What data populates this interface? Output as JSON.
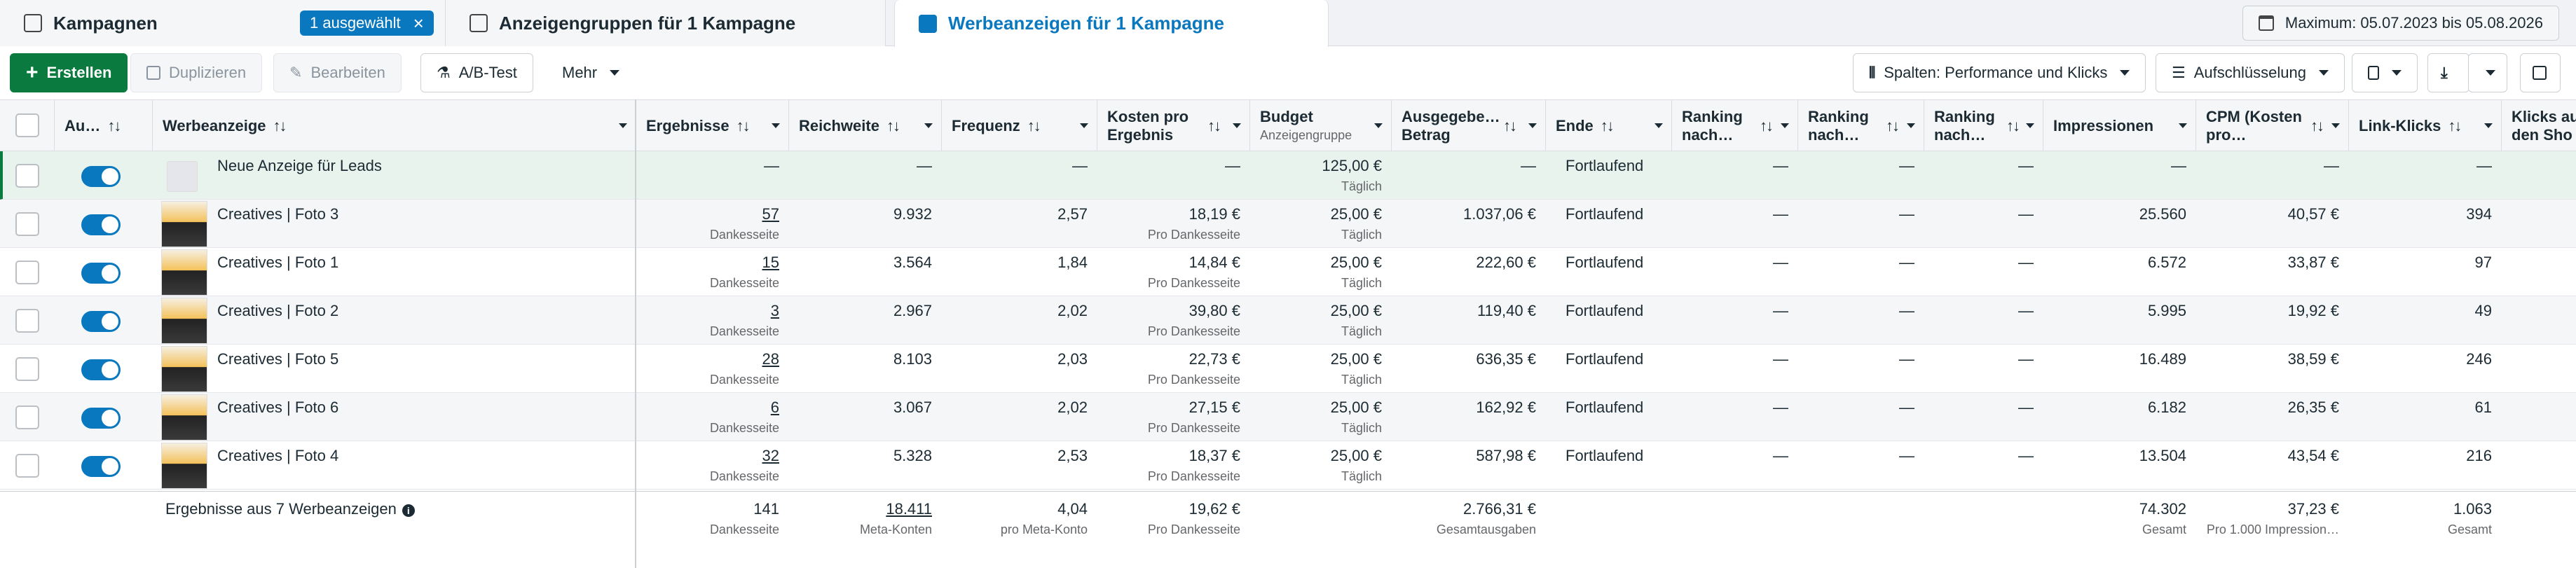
{
  "tabs": {
    "campaigns": "Kampagnen",
    "selected_badge": "1 ausgewählt",
    "adsets": "Anzeigengruppen für 1 Kampagne",
    "ads": "Werbeanzeigen für 1 Kampagne"
  },
  "date_range": "Maximum: 05.07.2023 bis 05.08.2026",
  "toolbar": {
    "create": "Erstellen",
    "duplicate": "Duplizieren",
    "edit": "Bearbeiten",
    "ab_test": "A/B-Test",
    "more": "Mehr",
    "columns": "Spalten: Performance und Klicks",
    "breakdown": "Aufschlüsselung"
  },
  "headers": {
    "status": "Au…",
    "ad": "Werbeanzeige",
    "results": "Ergebnisse",
    "reach": "Reichweite",
    "frequency": "Frequenz",
    "cpr_1": "Kosten pro",
    "cpr_2": "Ergebnis",
    "budget": "Budget",
    "budget_sub": "Anzeigengruppe",
    "spent_1": "Ausgegebe…",
    "spent_2": "Betrag",
    "ends": "Ende",
    "rank1_1": "Ranking",
    "rank1_2": "nach…",
    "rank2_1": "Ranking",
    "rank2_2": "nach…",
    "rank3_1": "Ranking",
    "rank3_2": "nach…",
    "impressions": "Impressionen",
    "cpm_1": "CPM (Kosten",
    "cpm_2": "pro…",
    "link_clicks": "Link-Klicks",
    "clicks_shop_1": "Klicks au",
    "clicks_shop_2": "den Sho"
  },
  "new_row": {
    "name": "Neue Anzeige für Leads",
    "dash": "—",
    "budget": "125,00 €",
    "budget_sub": "Täglich",
    "ends": "Fortlaufend"
  },
  "rows": [
    {
      "name": "Creatives | Foto 3",
      "results": "57",
      "results_sub": "Dankesseite",
      "reach": "9.932",
      "frequency": "2,57",
      "cpr": "18,19 €",
      "cpr_sub": "Pro Dankesseite",
      "budget": "25,00 €",
      "budget_sub": "Täglich",
      "spent": "1.037,06 €",
      "ends": "Fortlaufend",
      "dash": "—",
      "impressions": "25.560",
      "cpm": "40,57 €",
      "link_clicks": "394"
    },
    {
      "name": "Creatives | Foto 1",
      "results": "15",
      "results_sub": "Dankesseite",
      "reach": "3.564",
      "frequency": "1,84",
      "cpr": "14,84 €",
      "cpr_sub": "Pro Dankesseite",
      "budget": "25,00 €",
      "budget_sub": "Täglich",
      "spent": "222,60 €",
      "ends": "Fortlaufend",
      "dash": "—",
      "impressions": "6.572",
      "cpm": "33,87 €",
      "link_clicks": "97"
    },
    {
      "name": "Creatives | Foto 2",
      "results": "3",
      "results_sub": "Dankesseite",
      "reach": "2.967",
      "frequency": "2,02",
      "cpr": "39,80 €",
      "cpr_sub": "Pro Dankesseite",
      "budget": "25,00 €",
      "budget_sub": "Täglich",
      "spent": "119,40 €",
      "ends": "Fortlaufend",
      "dash": "—",
      "impressions": "5.995",
      "cpm": "19,92 €",
      "link_clicks": "49"
    },
    {
      "name": "Creatives | Foto 5",
      "results": "28",
      "results_sub": "Dankesseite",
      "reach": "8.103",
      "frequency": "2,03",
      "cpr": "22,73 €",
      "cpr_sub": "Pro Dankesseite",
      "budget": "25,00 €",
      "budget_sub": "Täglich",
      "spent": "636,35 €",
      "ends": "Fortlaufend",
      "dash": "—",
      "impressions": "16.489",
      "cpm": "38,59 €",
      "link_clicks": "246"
    },
    {
      "name": "Creatives | Foto 6",
      "results": "6",
      "results_sub": "Dankesseite",
      "reach": "3.067",
      "frequency": "2,02",
      "cpr": "27,15 €",
      "cpr_sub": "Pro Dankesseite",
      "budget": "25,00 €",
      "budget_sub": "Täglich",
      "spent": "162,92 €",
      "ends": "Fortlaufend",
      "dash": "—",
      "impressions": "6.182",
      "cpm": "26,35 €",
      "link_clicks": "61"
    },
    {
      "name": "Creatives | Foto 4",
      "results": "32",
      "results_sub": "Dankesseite",
      "reach": "5.328",
      "frequency": "2,53",
      "cpr": "18,37 €",
      "cpr_sub": "Pro Dankesseite",
      "budget": "25,00 €",
      "budget_sub": "Täglich",
      "spent": "587,98 €",
      "ends": "Fortlaufend",
      "dash": "—",
      "impressions": "13.504",
      "cpm": "43,54 €",
      "link_clicks": "216"
    }
  ],
  "summary": {
    "label": "Ergebnisse aus 7 Werbeanzeigen",
    "results": "141",
    "results_sub": "Dankesseite",
    "reach": "18.411",
    "reach_sub": "Meta-Konten",
    "frequency": "4,04",
    "frequency_sub": "pro Meta-Konto",
    "cpr": "19,62 €",
    "cpr_sub": "Pro Dankesseite",
    "spent": "2.766,31 €",
    "spent_sub": "Gesamtausgaben",
    "impressions": "74.302",
    "impressions_sub": "Gesamt",
    "cpm": "37,23 €",
    "cpm_sub": "Pro 1.000 Impression…",
    "link_clicks": "1.063",
    "link_clicks_sub": "Gesamt"
  },
  "colors": {
    "primary": "#0b7a3e",
    "accent": "#0a78be"
  }
}
